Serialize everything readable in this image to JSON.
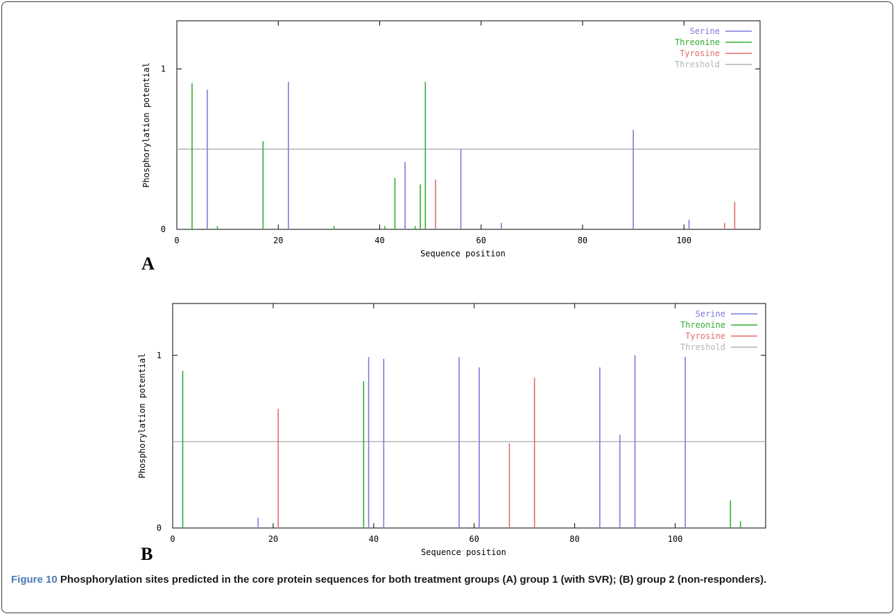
{
  "figure": {
    "caption_label": "Figure 10",
    "caption_text": "Phosphorylation sites predicted in the core protein sequences for both treatment groups (A) group 1 (with SVR); (B) group 2 (non-responders)."
  },
  "colors": {
    "Serine": "#7b7bdb",
    "Threonine": "#2fae2f",
    "Tyrosine": "#e36a6a",
    "Threshold": "#b4b4b4"
  },
  "chart_data": [
    {
      "type": "bar",
      "panel_label": "A",
      "xlabel": "Sequence position",
      "ylabel": "Phosphorylation potential",
      "xlim": [
        0,
        115
      ],
      "ylim": [
        0,
        1.3
      ],
      "xticks": [
        0,
        20,
        40,
        60,
        80,
        100
      ],
      "yticks": [
        0,
        1
      ],
      "xtick_labels": [
        "0",
        "20",
        "40",
        "60",
        "80",
        "100"
      ],
      "ytick_labels": [
        "0",
        "1"
      ],
      "threshold": 0.5,
      "legend_position": "top-right",
      "series": [
        {
          "name": "Serine",
          "x": [
            6,
            22,
            45,
            56,
            64,
            90,
            101
          ],
          "values": [
            0.87,
            0.92,
            0.42,
            0.5,
            0.04,
            0.62,
            0.06
          ]
        },
        {
          "name": "Threonine",
          "x": [
            3,
            8,
            17,
            31,
            41,
            43,
            47,
            48,
            49
          ],
          "values": [
            0.91,
            0.02,
            0.55,
            0.02,
            0.02,
            0.32,
            0.02,
            0.28,
            0.92
          ]
        },
        {
          "name": "Tyrosine",
          "x": [
            51,
            108,
            110
          ],
          "values": [
            0.31,
            0.04,
            0.17
          ]
        },
        {
          "name": "Threshold",
          "values": [
            0.5
          ]
        }
      ]
    },
    {
      "type": "bar",
      "panel_label": "B",
      "xlabel": "Sequence position",
      "ylabel": "Phosphorylation potential",
      "xlim": [
        0,
        118
      ],
      "ylim": [
        0,
        1.3
      ],
      "xticks": [
        0,
        20,
        40,
        60,
        80,
        100
      ],
      "yticks": [
        0,
        1
      ],
      "xtick_labels": [
        "0",
        "20",
        "40",
        "60",
        "80",
        "100"
      ],
      "ytick_labels": [
        "0",
        "1"
      ],
      "threshold": 0.5,
      "legend_position": "top-right",
      "series": [
        {
          "name": "Serine",
          "x": [
            17,
            39,
            42,
            57,
            61,
            85,
            89,
            92,
            102
          ],
          "values": [
            0.06,
            0.99,
            0.98,
            0.99,
            0.93,
            0.93,
            0.54,
            1.0,
            0.99
          ]
        },
        {
          "name": "Threonine",
          "x": [
            2,
            38,
            111,
            113
          ],
          "values": [
            0.91,
            0.85,
            0.16,
            0.04
          ]
        },
        {
          "name": "Tyrosine",
          "x": [
            21,
            67,
            72
          ],
          "values": [
            0.69,
            0.49,
            0.87
          ]
        },
        {
          "name": "Threshold",
          "values": [
            0.5
          ]
        }
      ]
    }
  ]
}
